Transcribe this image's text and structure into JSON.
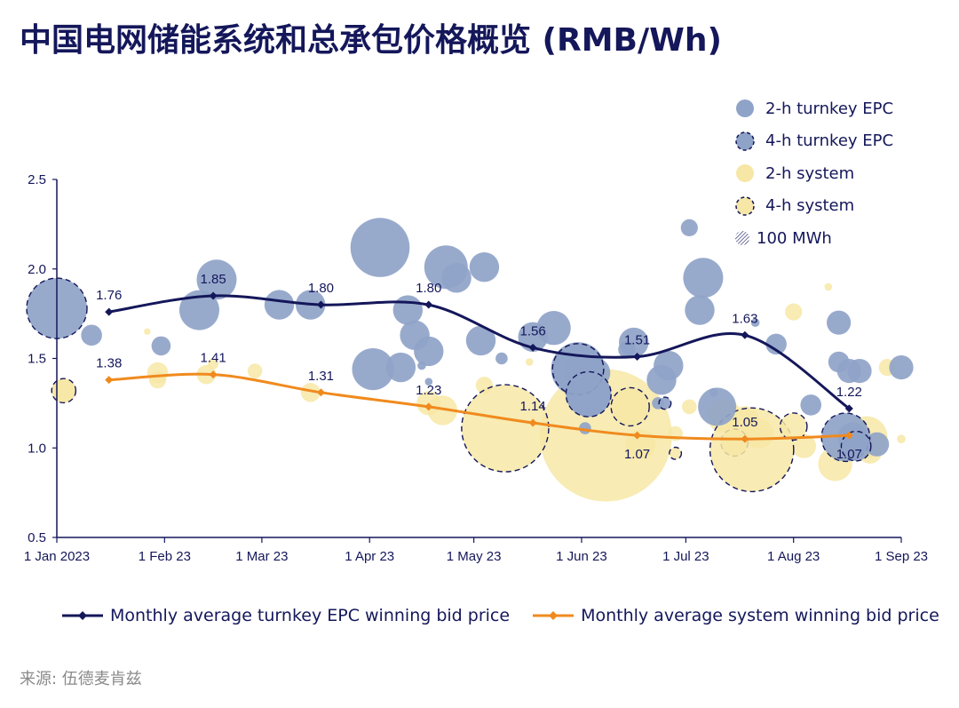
{
  "title": "中国电网储能系统和总承包价格概览 (RMB/Wh)",
  "source": "来源: 伍德麦肯兹",
  "colors": {
    "navy": "#14175a",
    "epc_bubble": "#8fa3c8",
    "system_bubble": "#f7e7a6",
    "orange": "#f08a1e",
    "axis": "#14175a"
  },
  "chart_data": {
    "type": "scatter",
    "x_ticks": [
      "1 Jan 2023",
      "1 Feb 23",
      "1 Mar 23",
      "1 Apr 23",
      "1 May 23",
      "1 Jun 23",
      "1 Jul 23",
      "1 Aug 23",
      "1 Sep 23"
    ],
    "y_ticks": [
      "0.5",
      "1.0",
      "1.5",
      "2.0",
      "2.5"
    ],
    "ylim": [
      0.5,
      2.5
    ],
    "xlim": [
      "2023-01-01",
      "2023-09-01"
    ],
    "legend_placement": "top-right",
    "bubble_legend": [
      {
        "label": "2-h turnkey EPC",
        "style": "epc-solid"
      },
      {
        "label": "4-h turnkey EPC",
        "style": "epc-dashed"
      },
      {
        "label": "2-h system",
        "style": "sys-solid"
      },
      {
        "label": "4-h system",
        "style": "sys-dashed"
      },
      {
        "label": "100 MWh",
        "style": "size-ref"
      }
    ],
    "lines": [
      {
        "name": "Monthly average turnkey EPC winning bid price",
        "color": "#14175a",
        "points": [
          {
            "x": "2023-01-16",
            "y": 1.76,
            "label": "1.76"
          },
          {
            "x": "2023-02-15",
            "y": 1.85,
            "label": "1.85"
          },
          {
            "x": "2023-03-18",
            "y": 1.8,
            "label": "1.80"
          },
          {
            "x": "2023-04-18",
            "y": 1.8,
            "label": "1.80"
          },
          {
            "x": "2023-05-18",
            "y": 1.56,
            "label": "1.56"
          },
          {
            "x": "2023-06-17",
            "y": 1.51,
            "label": "1.51"
          },
          {
            "x": "2023-07-18",
            "y": 1.63,
            "label": "1.63"
          },
          {
            "x": "2023-08-17",
            "y": 1.22,
            "label": "1.22"
          }
        ]
      },
      {
        "name": "Monthly average system winning bid price",
        "color": "#f08a1e",
        "points": [
          {
            "x": "2023-01-16",
            "y": 1.38,
            "label": "1.38"
          },
          {
            "x": "2023-02-15",
            "y": 1.41,
            "label": "1.41"
          },
          {
            "x": "2023-03-18",
            "y": 1.31,
            "label": "1.31"
          },
          {
            "x": "2023-04-18",
            "y": 1.23,
            "label": "1.23"
          },
          {
            "x": "2023-05-18",
            "y": 1.14,
            "label": "1.14"
          },
          {
            "x": "2023-06-17",
            "y": 1.07,
            "label": "1.07"
          },
          {
            "x": "2023-07-18",
            "y": 1.05,
            "label": "1.05"
          },
          {
            "x": "2023-08-17",
            "y": 1.07,
            "label": "1.07"
          }
        ]
      }
    ],
    "bubbles": [
      {
        "type": "sys2",
        "x": "2023-01-03",
        "y": 1.32,
        "size_mwh": 40
      },
      {
        "type": "sys2",
        "x": "2023-01-27",
        "y": 1.65,
        "size_mwh": 3
      },
      {
        "type": "sys2",
        "x": "2023-01-30",
        "y": 1.42,
        "size_mwh": 30
      },
      {
        "type": "sys2",
        "x": "2023-01-30",
        "y": 1.38,
        "size_mwh": 20
      },
      {
        "type": "sys2",
        "x": "2023-02-13",
        "y": 1.41,
        "size_mwh": 25
      },
      {
        "type": "sys2",
        "x": "2023-02-15",
        "y": 1.47,
        "size_mwh": 8
      },
      {
        "type": "sys2",
        "x": "2023-02-27",
        "y": 1.43,
        "size_mwh": 15
      },
      {
        "type": "sys2",
        "x": "2023-03-15",
        "y": 1.31,
        "size_mwh": 25
      },
      {
        "type": "sys2",
        "x": "2023-04-18",
        "y": 1.25,
        "size_mwh": 40
      },
      {
        "type": "sys2",
        "x": "2023-04-22",
        "y": 1.21,
        "size_mwh": 60
      },
      {
        "type": "sys2",
        "x": "2023-05-04",
        "y": 1.35,
        "size_mwh": 20
      },
      {
        "type": "sys2",
        "x": "2023-05-17",
        "y": 1.48,
        "size_mwh": 4
      },
      {
        "type": "sys2",
        "x": "2023-06-08",
        "y": 1.07,
        "size_mwh": 1200
      },
      {
        "type": "sys2",
        "x": "2023-06-18",
        "y": 1.02,
        "size_mwh": 60
      },
      {
        "type": "sys2",
        "x": "2023-06-28",
        "y": 1.08,
        "size_mwh": 15
      },
      {
        "type": "sys2",
        "x": "2023-07-02",
        "y": 1.23,
        "size_mwh": 15
      },
      {
        "type": "sys2",
        "x": "2023-07-12",
        "y": 1.18,
        "size_mwh": 80
      },
      {
        "type": "sys2",
        "x": "2023-07-18",
        "y": 1.15,
        "size_mwh": 60
      },
      {
        "type": "sys2",
        "x": "2023-07-22",
        "y": 1.08,
        "size_mwh": 60
      },
      {
        "type": "sys2",
        "x": "2023-08-01",
        "y": 1.76,
        "size_mwh": 20
      },
      {
        "type": "sys2",
        "x": "2023-08-04",
        "y": 1.01,
        "size_mwh": 40
      },
      {
        "type": "sys2",
        "x": "2023-08-11",
        "y": 1.9,
        "size_mwh": 4
      },
      {
        "type": "sys2",
        "x": "2023-08-13",
        "y": 0.91,
        "size_mwh": 80
      },
      {
        "type": "sys2",
        "x": "2023-08-18",
        "y": 1.06,
        "size_mwh": 60
      },
      {
        "type": "sys2",
        "x": "2023-08-22",
        "y": 1.06,
        "size_mwh": 120
      },
      {
        "type": "sys2",
        "x": "2023-08-23",
        "y": 0.98,
        "size_mwh": 40
      },
      {
        "type": "sys2",
        "x": "2023-08-28",
        "y": 1.45,
        "size_mwh": 20
      },
      {
        "type": "sys2",
        "x": "2023-09-01",
        "y": 1.05,
        "size_mwh": 5
      },
      {
        "type": "sys4",
        "x": "2023-01-03",
        "y": 1.32,
        "size_mwh": 40
      },
      {
        "type": "sys4",
        "x": "2023-05-10",
        "y": 1.11,
        "size_mwh": 520
      },
      {
        "type": "sys4",
        "x": "2023-06-15",
        "y": 1.23,
        "size_mwh": 100
      },
      {
        "type": "sys4",
        "x": "2023-06-28",
        "y": 0.97,
        "size_mwh": 10
      },
      {
        "type": "sys4",
        "x": "2023-07-15",
        "y": 1.03,
        "size_mwh": 50
      },
      {
        "type": "sys4",
        "x": "2023-07-20",
        "y": 0.99,
        "size_mwh": 480
      },
      {
        "type": "sys4",
        "x": "2023-08-01",
        "y": 1.12,
        "size_mwh": 50
      },
      {
        "type": "epc2",
        "x": "2023-01-11",
        "y": 1.63,
        "size_mwh": 30
      },
      {
        "type": "epc2",
        "x": "2023-01-31",
        "y": 1.57,
        "size_mwh": 25
      },
      {
        "type": "epc2",
        "x": "2023-02-11",
        "y": 1.77,
        "size_mwh": 110
      },
      {
        "type": "epc2",
        "x": "2023-02-16",
        "y": 1.94,
        "size_mwh": 110
      },
      {
        "type": "epc2",
        "x": "2023-03-06",
        "y": 1.8,
        "size_mwh": 60
      },
      {
        "type": "epc2",
        "x": "2023-03-15",
        "y": 1.8,
        "size_mwh": 60
      },
      {
        "type": "epc2",
        "x": "2023-04-02",
        "y": 1.44,
        "size_mwh": 120
      },
      {
        "type": "epc2",
        "x": "2023-04-04",
        "y": 2.12,
        "size_mwh": 240
      },
      {
        "type": "epc2",
        "x": "2023-04-10",
        "y": 1.45,
        "size_mwh": 60
      },
      {
        "type": "epc2",
        "x": "2023-04-12",
        "y": 1.77,
        "size_mwh": 60
      },
      {
        "type": "epc2",
        "x": "2023-04-14",
        "y": 1.63,
        "size_mwh": 60
      },
      {
        "type": "epc2",
        "x": "2023-04-16",
        "y": 1.46,
        "size_mwh": 5
      },
      {
        "type": "epc2",
        "x": "2023-04-18",
        "y": 1.37,
        "size_mwh": 4
      },
      {
        "type": "epc2",
        "x": "2023-04-18",
        "y": 1.54,
        "size_mwh": 60
      },
      {
        "type": "epc2",
        "x": "2023-04-23",
        "y": 2.01,
        "size_mwh": 130
      },
      {
        "type": "epc2",
        "x": "2023-04-26",
        "y": 1.95,
        "size_mwh": 60
      },
      {
        "type": "epc2",
        "x": "2023-05-03",
        "y": 1.6,
        "size_mwh": 60
      },
      {
        "type": "epc2",
        "x": "2023-05-04",
        "y": 2.01,
        "size_mwh": 60
      },
      {
        "type": "epc2",
        "x": "2023-05-09",
        "y": 1.5,
        "size_mwh": 10
      },
      {
        "type": "epc2",
        "x": "2023-05-18",
        "y": 1.62,
        "size_mwh": 60
      },
      {
        "type": "epc2",
        "x": "2023-05-24",
        "y": 1.67,
        "size_mwh": 80
      },
      {
        "type": "epc2",
        "x": "2023-05-31",
        "y": 1.42,
        "size_mwh": 60
      },
      {
        "type": "epc2",
        "x": "2023-05-31",
        "y": 1.44,
        "size_mwh": 200
      },
      {
        "type": "epc2",
        "x": "2023-06-02",
        "y": 1.11,
        "size_mwh": 10
      },
      {
        "type": "epc2",
        "x": "2023-06-03",
        "y": 1.3,
        "size_mwh": 140
      },
      {
        "type": "epc2",
        "x": "2023-06-05",
        "y": 1.42,
        "size_mwh": 60
      },
      {
        "type": "epc2",
        "x": "2023-06-14",
        "y": 1.55,
        "size_mwh": 20
      },
      {
        "type": "epc2",
        "x": "2023-06-16",
        "y": 1.59,
        "size_mwh": 60
      },
      {
        "type": "epc2",
        "x": "2023-06-23",
        "y": 1.25,
        "size_mwh": 10
      },
      {
        "type": "epc2",
        "x": "2023-06-24",
        "y": 1.38,
        "size_mwh": 60
      },
      {
        "type": "epc2",
        "x": "2023-06-26",
        "y": 1.46,
        "size_mwh": 60
      },
      {
        "type": "epc2",
        "x": "2023-07-05",
        "y": 1.77,
        "size_mwh": 60
      },
      {
        "type": "epc2",
        "x": "2023-07-06",
        "y": 1.95,
        "size_mwh": 110
      },
      {
        "type": "epc2",
        "x": "2023-07-09",
        "y": 1.31,
        "size_mwh": 5
      },
      {
        "type": "epc2",
        "x": "2023-07-10",
        "y": 1.23,
        "size_mwh": 100
      },
      {
        "type": "epc2",
        "x": "2023-07-21",
        "y": 1.7,
        "size_mwh": 5
      },
      {
        "type": "epc2",
        "x": "2023-07-27",
        "y": 1.58,
        "size_mwh": 30
      },
      {
        "type": "epc2",
        "x": "2023-08-06",
        "y": 1.24,
        "size_mwh": 30
      },
      {
        "type": "epc2",
        "x": "2023-08-14",
        "y": 1.7,
        "size_mwh": 40
      },
      {
        "type": "epc2",
        "x": "2023-08-14",
        "y": 1.48,
        "size_mwh": 30
      },
      {
        "type": "epc2",
        "x": "2023-08-17",
        "y": 1.43,
        "size_mwh": 40
      },
      {
        "type": "epc2",
        "x": "2023-08-18",
        "y": 1.06,
        "size_mwh": 60
      },
      {
        "type": "epc2",
        "x": "2023-08-20",
        "y": 1.43,
        "size_mwh": 40
      },
      {
        "type": "epc2",
        "x": "2023-08-25",
        "y": 1.02,
        "size_mwh": 40
      },
      {
        "type": "epc2",
        "x": "2023-09-01",
        "y": 1.45,
        "size_mwh": 40
      },
      {
        "type": "epc2",
        "x": "2023-07-02",
        "y": 2.23,
        "size_mwh": 20
      },
      {
        "type": "epc4",
        "x": "2023-01-01",
        "y": 1.78,
        "size_mwh": 250
      },
      {
        "type": "epc4",
        "x": "2023-05-31",
        "y": 1.44,
        "size_mwh": 180
      },
      {
        "type": "epc4",
        "x": "2023-06-03",
        "y": 1.3,
        "size_mwh": 140
      },
      {
        "type": "epc4",
        "x": "2023-06-25",
        "y": 1.25,
        "size_mwh": 10
      },
      {
        "type": "epc4",
        "x": "2023-08-16",
        "y": 1.06,
        "size_mwh": 160
      },
      {
        "type": "epc4",
        "x": "2023-08-19",
        "y": 1.01,
        "size_mwh": 60
      }
    ]
  },
  "legend_bottom": [
    {
      "label": "Monthly average turnkey EPC winning bid price",
      "color": "#14175a"
    },
    {
      "label": "Monthly average system winning bid price",
      "color": "#f08a1e"
    }
  ]
}
